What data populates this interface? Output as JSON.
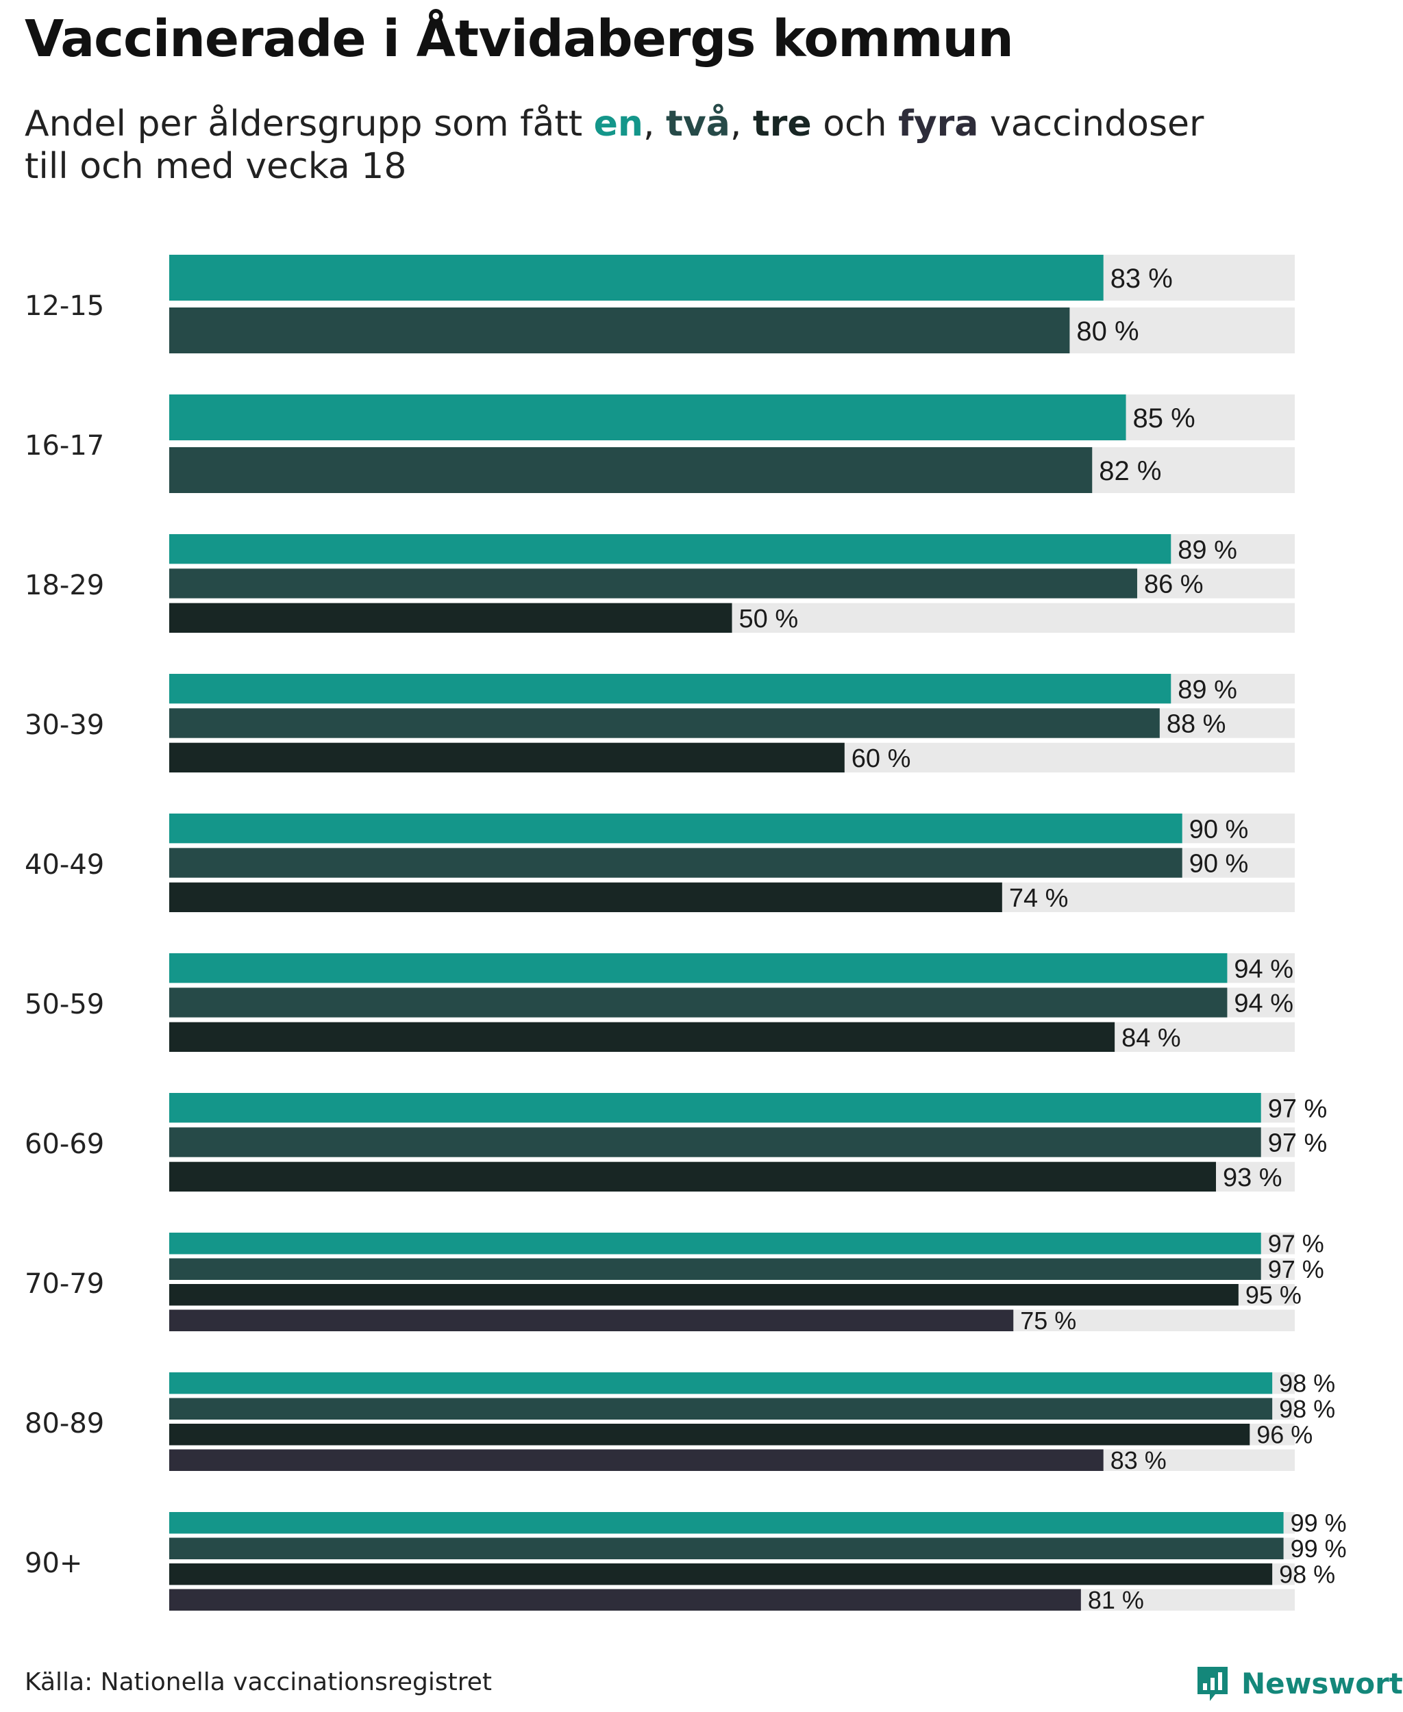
{
  "title": "Vaccinerade i Åtvidabergs kommun",
  "subtitle": {
    "prefix": "Andel per åldersgrupp som fått ",
    "dose1": "en",
    "sep1": ", ",
    "dose2": "två",
    "sep2": ", ",
    "dose3": "tre",
    "mid": " och ",
    "dose4": "fyra",
    "suffix": " vaccindoser",
    "line2": "till och med vecka 18"
  },
  "colors": {
    "dose1": "#14968a",
    "dose2": "#264a48",
    "dose3": "#182624",
    "dose4": "#2e2d3a",
    "track": "#e9e9e9"
  },
  "chart_data": {
    "type": "bar",
    "orientation": "horizontal",
    "xlim": [
      0,
      100
    ],
    "value_suffix": " %",
    "categories": [
      "12-15",
      "16-17",
      "18-29",
      "30-39",
      "40-49",
      "50-59",
      "60-69",
      "70-79",
      "80-89",
      "90+"
    ],
    "series": [
      {
        "name": "en",
        "values": [
          83,
          85,
          89,
          89,
          90,
          94,
          97,
          97,
          98,
          99
        ]
      },
      {
        "name": "två",
        "values": [
          80,
          82,
          86,
          88,
          90,
          94,
          97,
          97,
          98,
          99
        ]
      },
      {
        "name": "tre",
        "values": [
          null,
          null,
          50,
          60,
          74,
          84,
          93,
          95,
          96,
          98
        ]
      },
      {
        "name": "fyra",
        "values": [
          null,
          null,
          null,
          null,
          null,
          null,
          null,
          75,
          83,
          81
        ]
      }
    ]
  },
  "source": "Källa: Nationella vaccinationsregistret",
  "brand": {
    "name": "Newsworthy",
    "icon": "newsworthy-logo-icon"
  }
}
